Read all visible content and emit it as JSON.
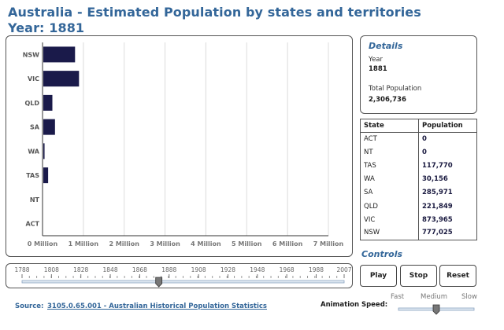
{
  "header": {
    "title": "Australia - Estimated Population by states and territories",
    "subtitle": "Year: 1881"
  },
  "details": {
    "heading": "Details",
    "year_label": "Year",
    "year_value": "1881",
    "total_label": "Total Population",
    "total_value": "2,306,736"
  },
  "table": {
    "headers": [
      "State",
      "Population"
    ],
    "rows": [
      {
        "state": "ACT",
        "population": "0"
      },
      {
        "state": "NT",
        "population": "0"
      },
      {
        "state": "TAS",
        "population": "117,770"
      },
      {
        "state": "WA",
        "population": "30,156"
      },
      {
        "state": "SA",
        "population": "285,971"
      },
      {
        "state": "QLD",
        "population": "221,849"
      },
      {
        "state": "VIC",
        "population": "873,965"
      },
      {
        "state": "NSW",
        "population": "777,025"
      }
    ]
  },
  "controls": {
    "heading": "Controls",
    "play_label": "Play",
    "stop_label": "Stop",
    "reset_label": "Reset"
  },
  "timeline": {
    "ticks": [
      "1788",
      "1808",
      "1828",
      "1848",
      "1868",
      "1888",
      "1908",
      "1928",
      "1948",
      "1968",
      "1988",
      "2007"
    ],
    "current_year": 1881,
    "min_year": 1788,
    "max_year": 2007
  },
  "source": {
    "label": "Source:",
    "link_text": "3105.0.65.001 - Australian Historical Population Statistics"
  },
  "speed": {
    "label": "Animation Speed:",
    "options": [
      "Fast",
      "Medium",
      "Slow"
    ],
    "selected": "Medium"
  },
  "colors": {
    "bar": "#1a1a4a",
    "accent": "#336699"
  },
  "chart_data": {
    "type": "bar",
    "orientation": "horizontal",
    "categories": [
      "NSW",
      "VIC",
      "QLD",
      "SA",
      "WA",
      "TAS",
      "NT",
      "ACT"
    ],
    "values": [
      777025,
      873965,
      221849,
      285971,
      30156,
      117770,
      0,
      0
    ],
    "xlim": [
      0,
      7000000
    ],
    "xticks": [
      "0 Million",
      "1 Million",
      "2 Million",
      "3 Million",
      "4 Million",
      "5 Million",
      "6 Million",
      "7 Million"
    ],
    "grid": true
  }
}
